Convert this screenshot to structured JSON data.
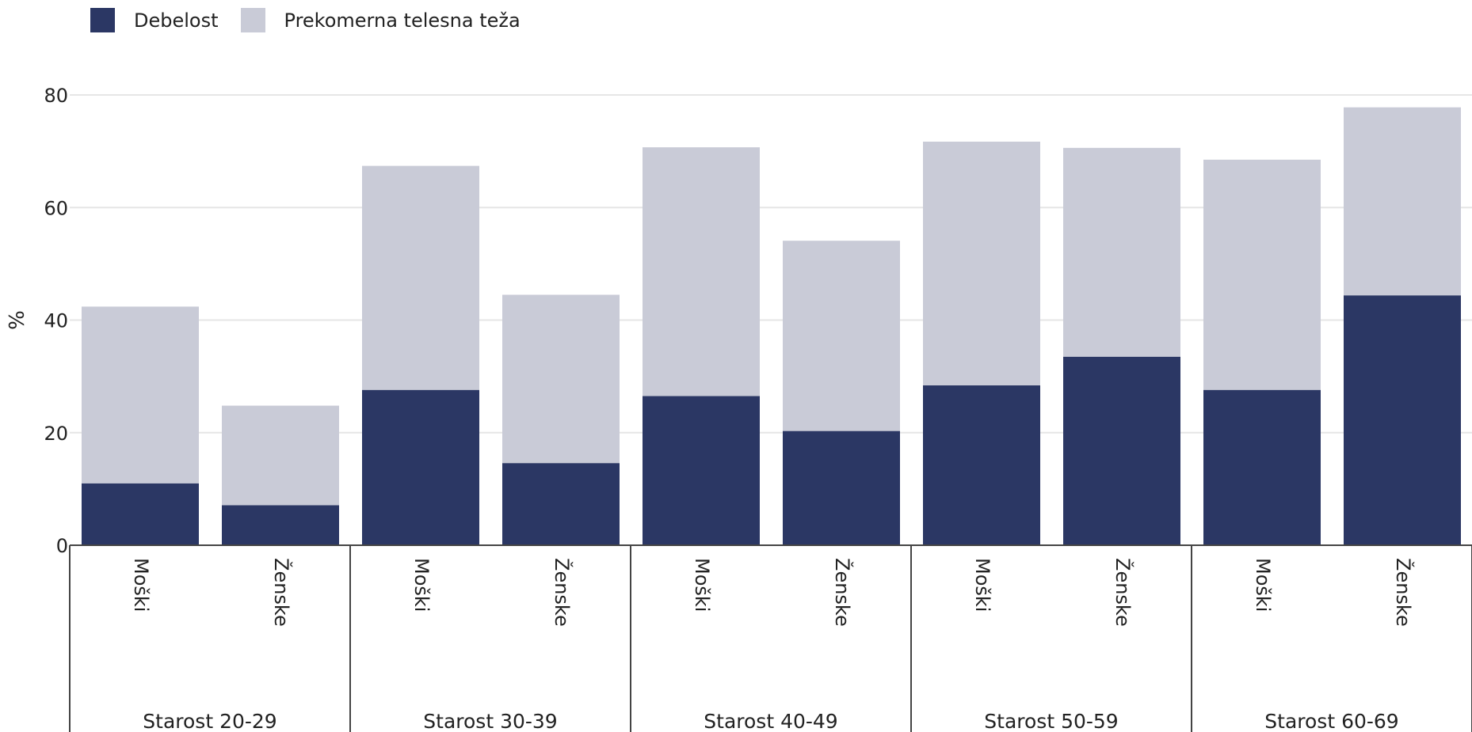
{
  "colors": {
    "obesity": "#2b3764",
    "overweight": "#c9cbd7",
    "grid": "#e6e6e6",
    "axis": "#444444"
  },
  "legend": {
    "obesity_label": "Debelost",
    "overweight_label": "Prekomerna telesna teža"
  },
  "chart_data": {
    "type": "bar",
    "stacked": true,
    "ylabel": "%",
    "ylim": [
      0,
      80
    ],
    "yticks": [
      0,
      20,
      40,
      60,
      80
    ],
    "groups": [
      {
        "label": "Starost 20-29",
        "categories": [
          "Moški",
          "Ženske"
        ]
      },
      {
        "label": "Starost 30-39",
        "categories": [
          "Moški",
          "Ženske"
        ]
      },
      {
        "label": "Starost 40-49",
        "categories": [
          "Moški",
          "Ženske"
        ]
      },
      {
        "label": "Starost 50-59",
        "categories": [
          "Moški",
          "Ženske"
        ]
      },
      {
        "label": "Starost 60-69",
        "categories": [
          "Moški",
          "Ženske"
        ]
      }
    ],
    "series": [
      {
        "name": "Debelost",
        "values": [
          11.0,
          7.1,
          27.6,
          14.6,
          26.5,
          20.3,
          28.4,
          33.5,
          27.6,
          44.4
        ]
      },
      {
        "name": "Prekomerna telesna teža",
        "values": [
          31.4,
          17.7,
          39.8,
          29.9,
          44.2,
          33.8,
          43.3,
          37.1,
          40.9,
          33.4
        ]
      }
    ],
    "grid": true,
    "legend_position": "top-left"
  }
}
